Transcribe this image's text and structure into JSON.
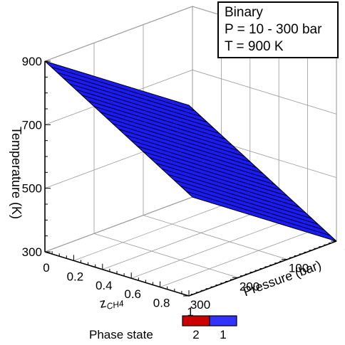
{
  "info_box": {
    "line1": "Binary",
    "line2": "P = 10 - 300 bar",
    "line3": "T = 900 K"
  },
  "chart_data": {
    "type": "surface3d",
    "x_axis": {
      "label_main": "z",
      "label_sub": "CH4",
      "ticks": [
        "0",
        "0.2",
        "0.4",
        "0.6",
        "0.8",
        "1"
      ],
      "range": [
        0,
        1
      ]
    },
    "y_axis": {
      "label": "Pressure (bar)",
      "ticks": [
        "0",
        "100",
        "200",
        "300"
      ],
      "range": [
        0,
        300
      ]
    },
    "z_axis": {
      "label": "Temperature (K)",
      "ticks": [
        "300",
        "500",
        "700",
        "900"
      ],
      "range": [
        300,
        900
      ]
    },
    "surface": {
      "corners": [
        {
          "z_ch4": 0,
          "pressure": 300,
          "temperature": 900
        },
        {
          "z_ch4": 1,
          "pressure": 300,
          "temperature": 900
        },
        {
          "z_ch4": 0,
          "pressure": 0,
          "temperature": 300
        },
        {
          "z_ch4": 1,
          "pressure": 0,
          "temperature": 300
        }
      ],
      "phase_state": 1,
      "contour_levels": 24,
      "fill_color": "#1a1aff"
    },
    "legend": {
      "title": "Phase state",
      "entries": [
        {
          "label": "2",
          "color": "#cc0000"
        },
        {
          "label": "1",
          "color": "#3333ff"
        }
      ]
    }
  }
}
